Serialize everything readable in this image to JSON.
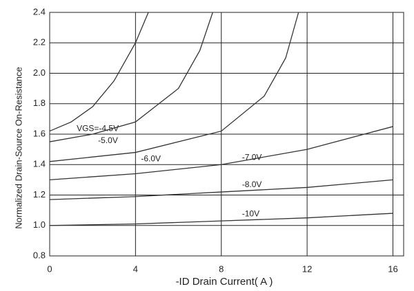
{
  "chart_data": {
    "type": "line",
    "y_label": "Normalized Drain-Source On-Resistance",
    "x_label": "-ID Drain Current( A )",
    "xlim": [
      0,
      16.5
    ],
    "xticks": [
      0,
      4,
      8,
      12,
      16
    ],
    "ylim": [
      0.8,
      2.4
    ],
    "yticks": [
      0.8,
      {
        "value": 1,
        "label": "1.0"
      },
      1.2,
      1.4,
      1.6,
      1.8,
      {
        "value": 2,
        "label": "2.0"
      },
      2.2,
      2.4
    ],
    "grid": true,
    "series": [
      {
        "name": "VGS=-4.5V",
        "color": "#333333",
        "x": [
          0,
          1,
          2,
          3,
          4,
          4.6
        ],
        "values": [
          1.62,
          1.68,
          1.78,
          1.95,
          2.2,
          2.4
        ]
      },
      {
        "name": "-5.0V",
        "color": "#333333",
        "x": [
          0,
          2,
          4,
          6,
          7,
          7.6
        ],
        "values": [
          1.55,
          1.6,
          1.68,
          1.9,
          2.15,
          2.4
        ]
      },
      {
        "name": "-6.0V",
        "color": "#333333",
        "x": [
          0,
          4,
          8,
          10,
          11,
          11.6
        ],
        "values": [
          1.42,
          1.48,
          1.62,
          1.85,
          2.1,
          2.4
        ]
      },
      {
        "name": "-7.0V",
        "color": "#333333",
        "x": [
          0,
          4,
          8,
          12,
          16
        ],
        "values": [
          1.3,
          1.34,
          1.4,
          1.5,
          1.65
        ]
      },
      {
        "name": "-8.0V",
        "color": "#333333",
        "x": [
          0,
          4,
          8,
          12,
          16
        ],
        "values": [
          1.17,
          1.19,
          1.22,
          1.25,
          1.3
        ]
      },
      {
        "name": "-10V",
        "color": "#333333",
        "x": [
          0,
          4,
          8,
          12,
          16
        ],
        "values": [
          1.0,
          1.01,
          1.03,
          1.05,
          1.08
        ]
      }
    ]
  }
}
